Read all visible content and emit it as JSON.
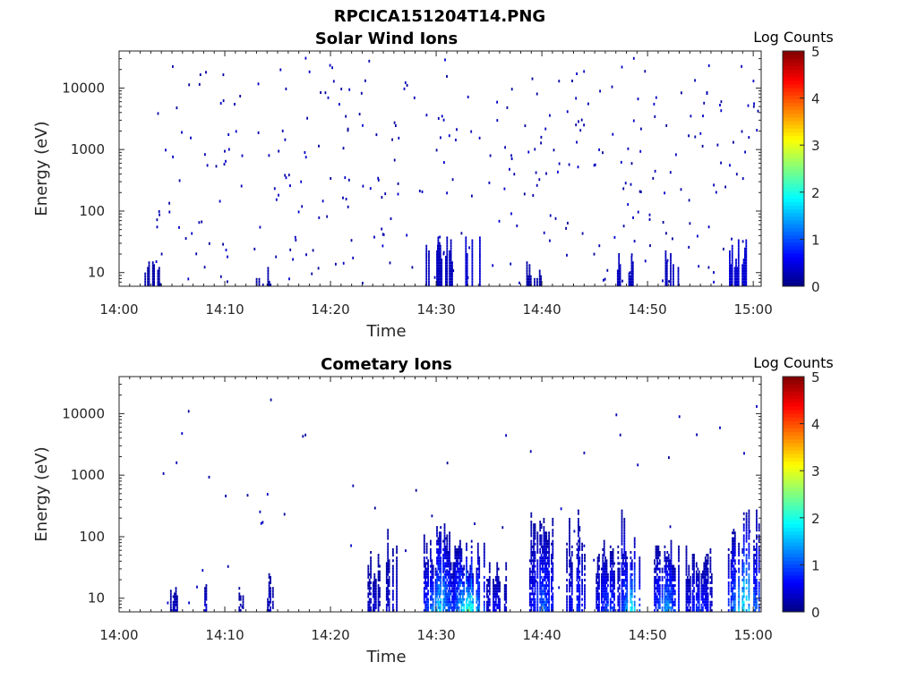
{
  "figure_title": "RPCICA151204T14.PNG",
  "chart_data": [
    {
      "type": "heatmap",
      "title": "Solar Wind Ions",
      "xlabel": "Time",
      "ylabel": "Energy (eV)",
      "x_ticks": [
        "14:00",
        "14:10",
        "14:20",
        "14:30",
        "14:40",
        "14:50",
        "15:00"
      ],
      "x_range_minutes": [
        0,
        60
      ],
      "y_scale": "log",
      "y_ticks": [
        "10",
        "100",
        "1000",
        "10000"
      ],
      "y_range_eV": [
        6,
        40000
      ],
      "colorbar": {
        "label": "Log Counts",
        "ticks": [
          "0",
          "1",
          "2",
          "3",
          "4",
          "5"
        ],
        "range": [
          0,
          5
        ],
        "colormap": "jet"
      },
      "background": "white",
      "low_energy_bursts": [
        {
          "t_min": 3.2,
          "e_max": 16,
          "level": 0.2
        },
        {
          "t_min": 13.5,
          "e_max": 12,
          "level": 0.2
        },
        {
          "t_min": 29.8,
          "e_max": 30,
          "level": 0.3
        },
        {
          "t_min": 30.8,
          "e_max": 40,
          "level": 0.3
        },
        {
          "t_min": 33.3,
          "e_max": 40,
          "level": 0.4
        },
        {
          "t_min": 39.2,
          "e_max": 15,
          "level": 0.2
        },
        {
          "t_min": 47.9,
          "e_max": 20,
          "level": 0.3
        },
        {
          "t_min": 52.2,
          "e_max": 30,
          "level": 0.3
        },
        {
          "t_min": 58.5,
          "e_max": 35,
          "level": 0.4
        }
      ],
      "scatter_counts": {
        "t_min": 3.2,
        "t_max": 60.5,
        "e_min": 6,
        "e_max": 30000,
        "level": 0.1
      }
    },
    {
      "type": "heatmap",
      "title": "Cometary Ions",
      "xlabel": "Time",
      "ylabel": "Energy (eV)",
      "x_ticks": [
        "14:00",
        "14:10",
        "14:20",
        "14:30",
        "14:40",
        "14:50",
        "15:00"
      ],
      "x_range_minutes": [
        0,
        60
      ],
      "y_scale": "log",
      "y_ticks": [
        "10",
        "100",
        "1000",
        "10000"
      ],
      "y_range_eV": [
        6,
        40000
      ],
      "colorbar": {
        "label": "Log Counts",
        "ticks": [
          "0",
          "1",
          "2",
          "3",
          "4",
          "5"
        ],
        "range": [
          0,
          5
        ],
        "colormap": "jet"
      },
      "background": "white",
      "bursts": [
        {
          "t_start": 4.7,
          "t_end": 5.5,
          "e_top": 15,
          "peak": 0.3
        },
        {
          "t_start": 7.7,
          "t_end": 8.6,
          "e_top": 25,
          "peak": 0.4
        },
        {
          "t_start": 11.3,
          "t_end": 11.7,
          "e_top": 15,
          "peak": 0.2
        },
        {
          "t_start": 14.0,
          "t_end": 14.5,
          "e_top": 25,
          "peak": 0.3
        },
        {
          "t_start": 23.5,
          "t_end": 24.6,
          "e_top": 60,
          "peak": 0.4
        },
        {
          "t_start": 25.0,
          "t_end": 26.5,
          "e_top": 150,
          "peak": 0.4
        },
        {
          "t_start": 28.8,
          "t_end": 31.8,
          "e_top": 160,
          "peak": 1.8
        },
        {
          "t_start": 31.6,
          "t_end": 34.5,
          "e_top": 90,
          "peak": 2.4
        },
        {
          "t_start": 34.5,
          "t_end": 36.6,
          "e_top": 40,
          "peak": 0.6
        },
        {
          "t_start": 38.8,
          "t_end": 41.3,
          "e_top": 250,
          "peak": 1.2
        },
        {
          "t_start": 42.3,
          "t_end": 44.3,
          "e_top": 260,
          "peak": 0.8
        },
        {
          "t_start": 45.1,
          "t_end": 47.3,
          "e_top": 90,
          "peak": 1.1
        },
        {
          "t_start": 47.5,
          "t_end": 49.3,
          "e_top": 260,
          "peak": 2.1
        },
        {
          "t_start": 50.6,
          "t_end": 52.9,
          "e_top": 110,
          "peak": 1.6
        },
        {
          "t_start": 53.6,
          "t_end": 56.0,
          "e_top": 70,
          "peak": 0.9
        },
        {
          "t_start": 57.6,
          "t_end": 60.5,
          "e_top": 300,
          "peak": 2.1
        }
      ],
      "scatter_counts": {
        "t_min": 3.2,
        "t_max": 60.5,
        "e_min": 6,
        "e_max": 16000,
        "level": 0.1
      }
    }
  ]
}
